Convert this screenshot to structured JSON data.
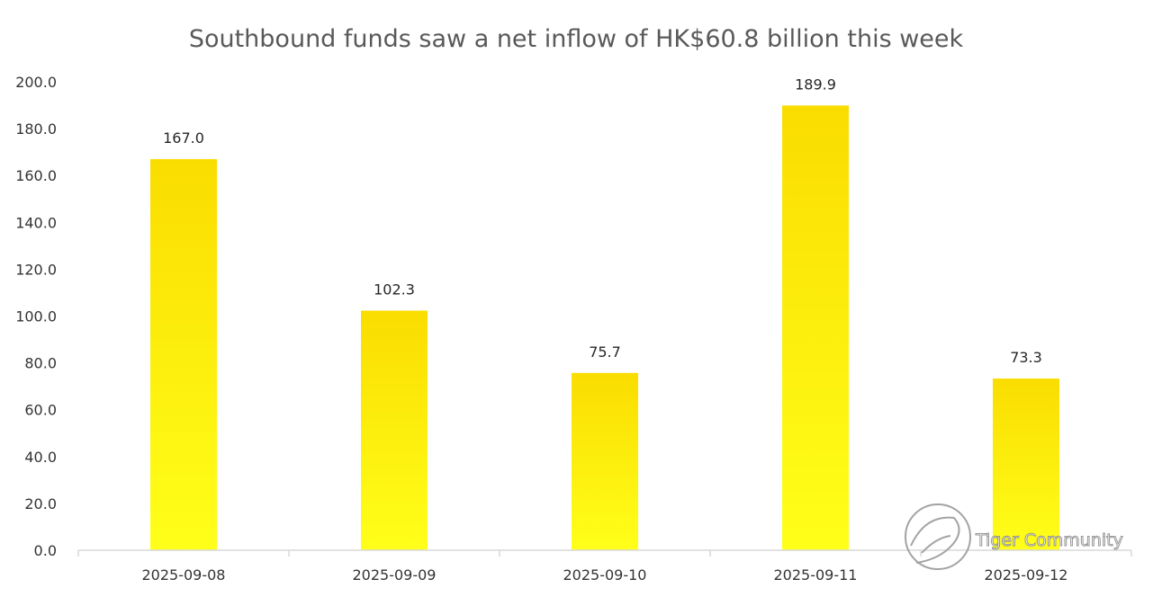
{
  "chart_data": {
    "type": "bar",
    "title": "Southbound funds saw a net inflow of HK$60.8 billion this week",
    "xlabel": "",
    "ylabel": "",
    "categories": [
      "2025-09-08",
      "2025-09-09",
      "2025-09-10",
      "2025-09-11",
      "2025-09-12"
    ],
    "values": [
      167.0,
      102.3,
      75.7,
      189.9,
      73.3
    ],
    "data_labels": [
      "167.0",
      "102.3",
      "75.7",
      "189.9",
      "73.3"
    ],
    "ylim": [
      0,
      200
    ],
    "yticks": [
      "0.0",
      "20.0",
      "40.0",
      "60.0",
      "80.0",
      "100.0",
      "120.0",
      "140.0",
      "160.0",
      "180.0",
      "200.0"
    ],
    "grid": false,
    "legend": "none",
    "bar_gradient": {
      "top": "#FADD00",
      "bottom": "#FFFF1A"
    }
  },
  "watermark": {
    "text": "Tiger Community",
    "icon": "tiger-logo-icon"
  }
}
